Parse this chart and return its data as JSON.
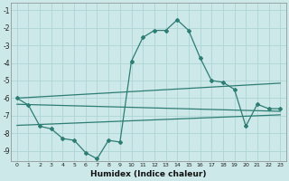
{
  "xlabel": "Humidex (Indice chaleur)",
  "bg_color": "#cce8e8",
  "grid_color": "#aed4d4",
  "line_color": "#2d7d74",
  "xlim": [
    -0.5,
    23.5
  ],
  "ylim": [
    -9.6,
    -0.6
  ],
  "xticks": [
    0,
    1,
    2,
    3,
    4,
    5,
    6,
    7,
    8,
    9,
    10,
    11,
    12,
    13,
    14,
    15,
    16,
    17,
    18,
    19,
    20,
    21,
    22,
    23
  ],
  "yticks": [
    -1,
    -2,
    -3,
    -4,
    -5,
    -6,
    -7,
    -8,
    -9
  ],
  "curve1_x": [
    0,
    1,
    2,
    3,
    4,
    5,
    6,
    7,
    8,
    9,
    10,
    11,
    12,
    13,
    14,
    15,
    16,
    17,
    18,
    19,
    20,
    21,
    22,
    23
  ],
  "curve1_y": [
    -6.0,
    -6.4,
    -7.6,
    -7.75,
    -8.3,
    -8.4,
    -9.1,
    -9.45,
    -8.4,
    -8.5,
    -3.9,
    -2.55,
    -2.15,
    -2.15,
    -1.55,
    -2.15,
    -3.7,
    -5.0,
    -5.1,
    -5.5,
    -7.6,
    -6.35,
    -6.6,
    -6.6
  ],
  "line1_x": [
    0,
    23
  ],
  "line1_y": [
    -6.0,
    -5.15
  ],
  "line2_x": [
    0,
    23
  ],
  "line2_y": [
    -6.35,
    -6.75
  ],
  "line3_x": [
    0,
    23
  ],
  "line3_y": [
    -7.55,
    -6.95
  ]
}
